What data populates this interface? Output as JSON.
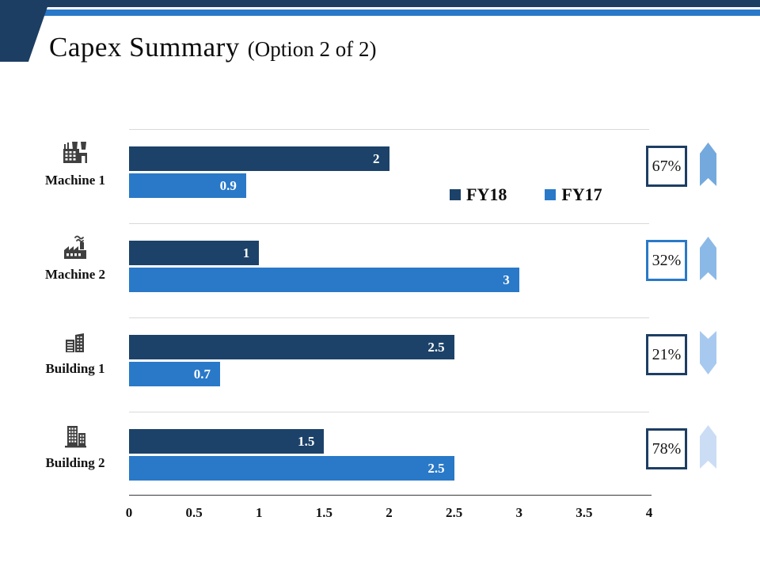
{
  "slide": {
    "title": "Capex Summary",
    "title_suffix": "(Option 2 of 2)"
  },
  "colors": {
    "navy": "#1D3E63",
    "stripe": "#2979C8",
    "fy18": "#1C4269",
    "fy17": "#2979C8",
    "grid": "#D9D9D9"
  },
  "legend": [
    {
      "label": "FY18",
      "color": "#1C4269"
    },
    {
      "label": "FY17",
      "color": "#2979C8"
    }
  ],
  "chart_data": {
    "type": "bar",
    "orientation": "horizontal",
    "categories": [
      "Machine 1",
      "Machine 2",
      "Building 1",
      "Building 2"
    ],
    "series": [
      {
        "name": "FY18",
        "color": "#1C4269",
        "values": [
          2,
          1,
          2.5,
          1.5
        ]
      },
      {
        "name": "FY17",
        "color": "#2979C8",
        "values": [
          0.9,
          3,
          0.7,
          2.5
        ]
      }
    ],
    "xlim": [
      0,
      4
    ],
    "x_ticks": [
      0,
      0.5,
      1,
      1.5,
      2,
      2.5,
      3,
      3.5,
      4
    ],
    "grid": "vertical category separators, light gray",
    "legend_position": "inside top-right of plot",
    "icons": [
      "factory-machine-icon",
      "factory-smoke-icon",
      "office-buildings-icon",
      "tall-building-icon"
    ],
    "annotations": [
      {
        "category": "Machine 1",
        "percent": "67%",
        "badge_border": "#1D3E63",
        "arrow_direction": "up",
        "arrow_color": "#74A9DE"
      },
      {
        "category": "Machine 2",
        "percent": "32%",
        "badge_border": "#2979C8",
        "arrow_direction": "up",
        "arrow_color": "#8BB9E7"
      },
      {
        "category": "Building 1",
        "percent": "21%",
        "badge_border": "#1D3E63",
        "arrow_direction": "down",
        "arrow_color": "#A7C9EF"
      },
      {
        "category": "Building 2",
        "percent": "78%",
        "badge_border": "#1D3E63",
        "arrow_direction": "up",
        "arrow_color": "#CBDDF5"
      }
    ]
  }
}
